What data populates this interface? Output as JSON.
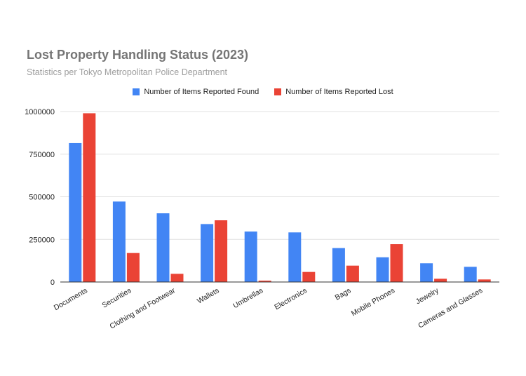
{
  "chart_data": {
    "type": "bar",
    "title": "Lost Property Handling Status (2023)",
    "subtitle": "Statistics per Tokyo Metropolitan Police Department",
    "categories": [
      "Documents",
      "Securities",
      "Clothing and Footwear",
      "Wallets",
      "Umbrellas",
      "Electronics",
      "Bags",
      "Mobile Phones",
      "Jewelry",
      "Cameras and Glasses"
    ],
    "series": [
      {
        "name": "Number of Items Reported Found",
        "color": "#4285f4",
        "values": [
          815000,
          472000,
          403000,
          340000,
          296000,
          291000,
          199000,
          145000,
          110000,
          89000
        ]
      },
      {
        "name": "Number of Items Reported Lost",
        "color": "#ea4335",
        "values": [
          990000,
          170000,
          48000,
          362000,
          8000,
          59000,
          96000,
          222000,
          19000,
          15000
        ]
      }
    ],
    "yticks": [
      0,
      250000,
      500000,
      750000,
      1000000
    ],
    "ylim": [
      0,
      1000000
    ],
    "grid": true,
    "legend_position": "top"
  }
}
